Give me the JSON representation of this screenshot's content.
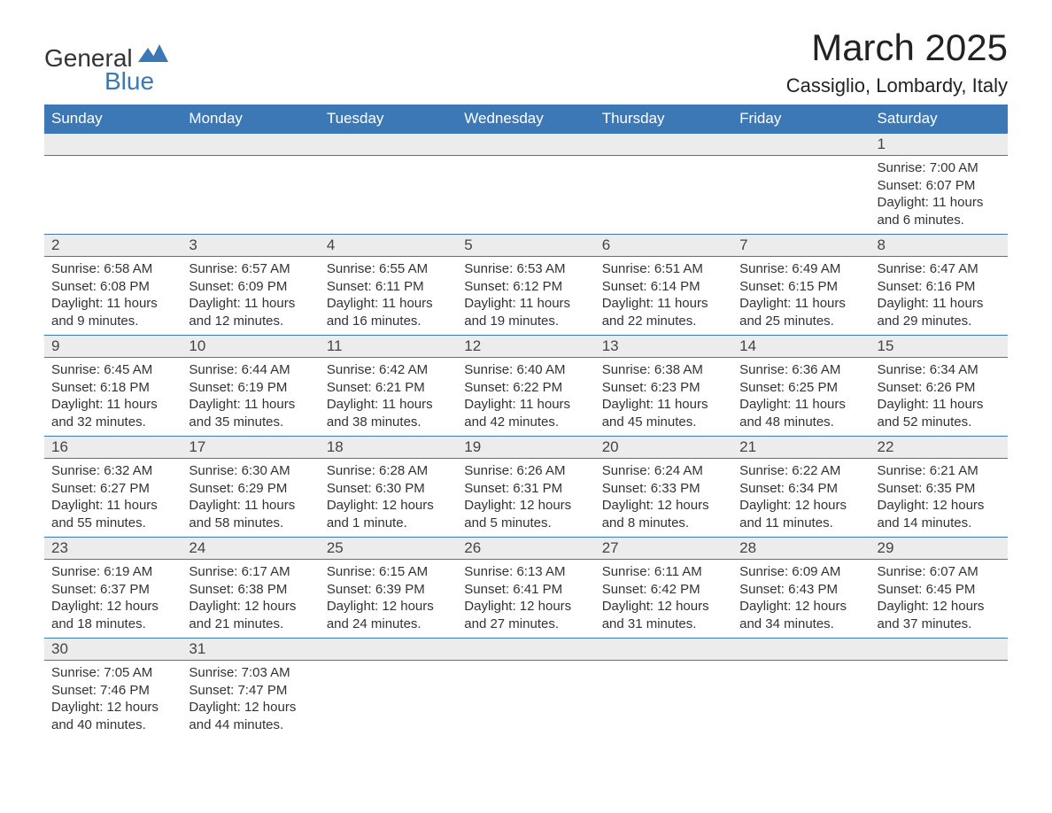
{
  "logo": {
    "word1": "General",
    "word2": "Blue",
    "icon_name": "general-blue-logo-icon",
    "color": "#3b78b5"
  },
  "title": "March 2025",
  "location": "Cassiglio, Lombardy, Italy",
  "colors": {
    "header_bg": "#3b78b5",
    "header_text": "#ffffff",
    "dayrow_bg": "#ececec",
    "border": "#3b78b5",
    "body_text": "#333333"
  },
  "day_headers": [
    "Sunday",
    "Monday",
    "Tuesday",
    "Wednesday",
    "Thursday",
    "Friday",
    "Saturday"
  ],
  "weeks": [
    [
      null,
      null,
      null,
      null,
      null,
      null,
      {
        "n": "1",
        "sunrise": "7:00 AM",
        "sunset": "6:07 PM",
        "daylight": "11 hours and 6 minutes."
      }
    ],
    [
      {
        "n": "2",
        "sunrise": "6:58 AM",
        "sunset": "6:08 PM",
        "daylight": "11 hours and 9 minutes."
      },
      {
        "n": "3",
        "sunrise": "6:57 AM",
        "sunset": "6:09 PM",
        "daylight": "11 hours and 12 minutes."
      },
      {
        "n": "4",
        "sunrise": "6:55 AM",
        "sunset": "6:11 PM",
        "daylight": "11 hours and 16 minutes."
      },
      {
        "n": "5",
        "sunrise": "6:53 AM",
        "sunset": "6:12 PM",
        "daylight": "11 hours and 19 minutes."
      },
      {
        "n": "6",
        "sunrise": "6:51 AM",
        "sunset": "6:14 PM",
        "daylight": "11 hours and 22 minutes."
      },
      {
        "n": "7",
        "sunrise": "6:49 AM",
        "sunset": "6:15 PM",
        "daylight": "11 hours and 25 minutes."
      },
      {
        "n": "8",
        "sunrise": "6:47 AM",
        "sunset": "6:16 PM",
        "daylight": "11 hours and 29 minutes."
      }
    ],
    [
      {
        "n": "9",
        "sunrise": "6:45 AM",
        "sunset": "6:18 PM",
        "daylight": "11 hours and 32 minutes."
      },
      {
        "n": "10",
        "sunrise": "6:44 AM",
        "sunset": "6:19 PM",
        "daylight": "11 hours and 35 minutes."
      },
      {
        "n": "11",
        "sunrise": "6:42 AM",
        "sunset": "6:21 PM",
        "daylight": "11 hours and 38 minutes."
      },
      {
        "n": "12",
        "sunrise": "6:40 AM",
        "sunset": "6:22 PM",
        "daylight": "11 hours and 42 minutes."
      },
      {
        "n": "13",
        "sunrise": "6:38 AM",
        "sunset": "6:23 PM",
        "daylight": "11 hours and 45 minutes."
      },
      {
        "n": "14",
        "sunrise": "6:36 AM",
        "sunset": "6:25 PM",
        "daylight": "11 hours and 48 minutes."
      },
      {
        "n": "15",
        "sunrise": "6:34 AM",
        "sunset": "6:26 PM",
        "daylight": "11 hours and 52 minutes."
      }
    ],
    [
      {
        "n": "16",
        "sunrise": "6:32 AM",
        "sunset": "6:27 PM",
        "daylight": "11 hours and 55 minutes."
      },
      {
        "n": "17",
        "sunrise": "6:30 AM",
        "sunset": "6:29 PM",
        "daylight": "11 hours and 58 minutes."
      },
      {
        "n": "18",
        "sunrise": "6:28 AM",
        "sunset": "6:30 PM",
        "daylight": "12 hours and 1 minute."
      },
      {
        "n": "19",
        "sunrise": "6:26 AM",
        "sunset": "6:31 PM",
        "daylight": "12 hours and 5 minutes."
      },
      {
        "n": "20",
        "sunrise": "6:24 AM",
        "sunset": "6:33 PM",
        "daylight": "12 hours and 8 minutes."
      },
      {
        "n": "21",
        "sunrise": "6:22 AM",
        "sunset": "6:34 PM",
        "daylight": "12 hours and 11 minutes."
      },
      {
        "n": "22",
        "sunrise": "6:21 AM",
        "sunset": "6:35 PM",
        "daylight": "12 hours and 14 minutes."
      }
    ],
    [
      {
        "n": "23",
        "sunrise": "6:19 AM",
        "sunset": "6:37 PM",
        "daylight": "12 hours and 18 minutes."
      },
      {
        "n": "24",
        "sunrise": "6:17 AM",
        "sunset": "6:38 PM",
        "daylight": "12 hours and 21 minutes."
      },
      {
        "n": "25",
        "sunrise": "6:15 AM",
        "sunset": "6:39 PM",
        "daylight": "12 hours and 24 minutes."
      },
      {
        "n": "26",
        "sunrise": "6:13 AM",
        "sunset": "6:41 PM",
        "daylight": "12 hours and 27 minutes."
      },
      {
        "n": "27",
        "sunrise": "6:11 AM",
        "sunset": "6:42 PM",
        "daylight": "12 hours and 31 minutes."
      },
      {
        "n": "28",
        "sunrise": "6:09 AM",
        "sunset": "6:43 PM",
        "daylight": "12 hours and 34 minutes."
      },
      {
        "n": "29",
        "sunrise": "6:07 AM",
        "sunset": "6:45 PM",
        "daylight": "12 hours and 37 minutes."
      }
    ],
    [
      {
        "n": "30",
        "sunrise": "7:05 AM",
        "sunset": "7:46 PM",
        "daylight": "12 hours and 40 minutes."
      },
      {
        "n": "31",
        "sunrise": "7:03 AM",
        "sunset": "7:47 PM",
        "daylight": "12 hours and 44 minutes."
      },
      null,
      null,
      null,
      null,
      null
    ]
  ],
  "labels": {
    "sunrise": "Sunrise:",
    "sunset": "Sunset:",
    "daylight": "Daylight:"
  }
}
